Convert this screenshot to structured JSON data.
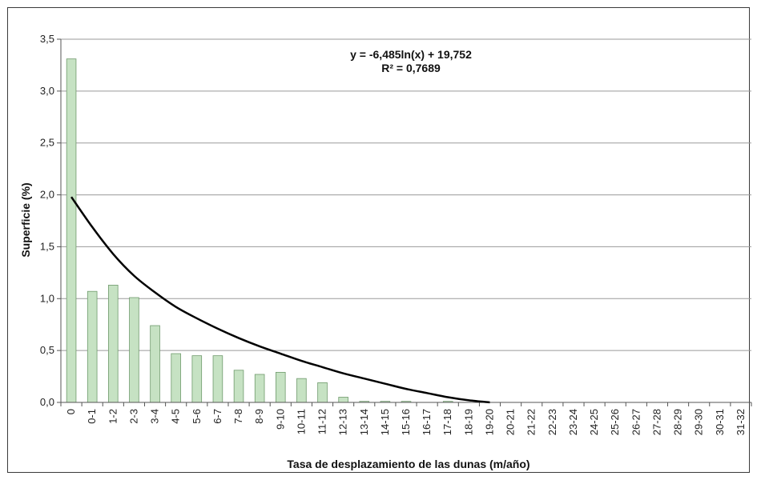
{
  "chart_data": {
    "type": "bar",
    "title": "",
    "xlabel": "Tasa de desplazamiento de las dunas (m/año)",
    "ylabel": "Superficie (%)",
    "ylim": [
      0,
      3.5
    ],
    "yticks": [
      "0,0",
      "0,5",
      "1,0",
      "1,5",
      "2,0",
      "2,5",
      "3,0",
      "3,5"
    ],
    "grid": true,
    "legend": "none",
    "categories": [
      "0",
      "0-1",
      "1-2",
      "2-3",
      "3-4",
      "4-5",
      "5-6",
      "6-7",
      "7-8",
      "8-9",
      "9-10",
      "10-11",
      "11-12",
      "12-13",
      "13-14",
      "14-15",
      "15-16",
      "16-17",
      "17-18",
      "18-19",
      "19-20",
      "20-21",
      "21-22",
      "22-23",
      "23-24",
      "24-25",
      "25-26",
      "26-27",
      "27-28",
      "28-29",
      "29-30",
      "30-31",
      "31-32"
    ],
    "values": [
      3.31,
      1.07,
      1.13,
      1.01,
      0.74,
      0.47,
      0.45,
      0.45,
      0.31,
      0.27,
      0.29,
      0.23,
      0.19,
      0.05,
      0.01,
      0.01,
      0.01,
      0.0,
      0.01,
      0.0,
      0.0,
      0,
      0,
      0,
      0,
      0,
      0,
      0,
      0,
      0,
      0,
      0,
      0
    ],
    "bar_color": "#c6e2c3",
    "bar_edge_color": "#6f9a6c",
    "trendline": {
      "type": "logarithmic",
      "equation": "y = -6,485ln(x) + 19,752",
      "r_squared": "R² = 0,7689",
      "color": "#000000",
      "points": [
        {
          "category": "0",
          "value": 1.98
        },
        {
          "category": "0-1",
          "value": 1.69
        },
        {
          "category": "1-2",
          "value": 1.43
        },
        {
          "category": "2-3",
          "value": 1.22
        },
        {
          "category": "3-4",
          "value": 1.06
        },
        {
          "category": "4-5",
          "value": 0.92
        },
        {
          "category": "5-6",
          "value": 0.81
        },
        {
          "category": "6-7",
          "value": 0.71
        },
        {
          "category": "7-8",
          "value": 0.62
        },
        {
          "category": "8-9",
          "value": 0.54
        },
        {
          "category": "9-10",
          "value": 0.47
        },
        {
          "category": "10-11",
          "value": 0.4
        },
        {
          "category": "11-12",
          "value": 0.34
        },
        {
          "category": "12-13",
          "value": 0.28
        },
        {
          "category": "13-14",
          "value": 0.23
        },
        {
          "category": "14-15",
          "value": 0.18
        },
        {
          "category": "15-16",
          "value": 0.13
        },
        {
          "category": "16-17",
          "value": 0.09
        },
        {
          "category": "17-18",
          "value": 0.05
        },
        {
          "category": "18-19",
          "value": 0.02
        },
        {
          "category": "19-20",
          "value": 0.0
        }
      ]
    }
  }
}
